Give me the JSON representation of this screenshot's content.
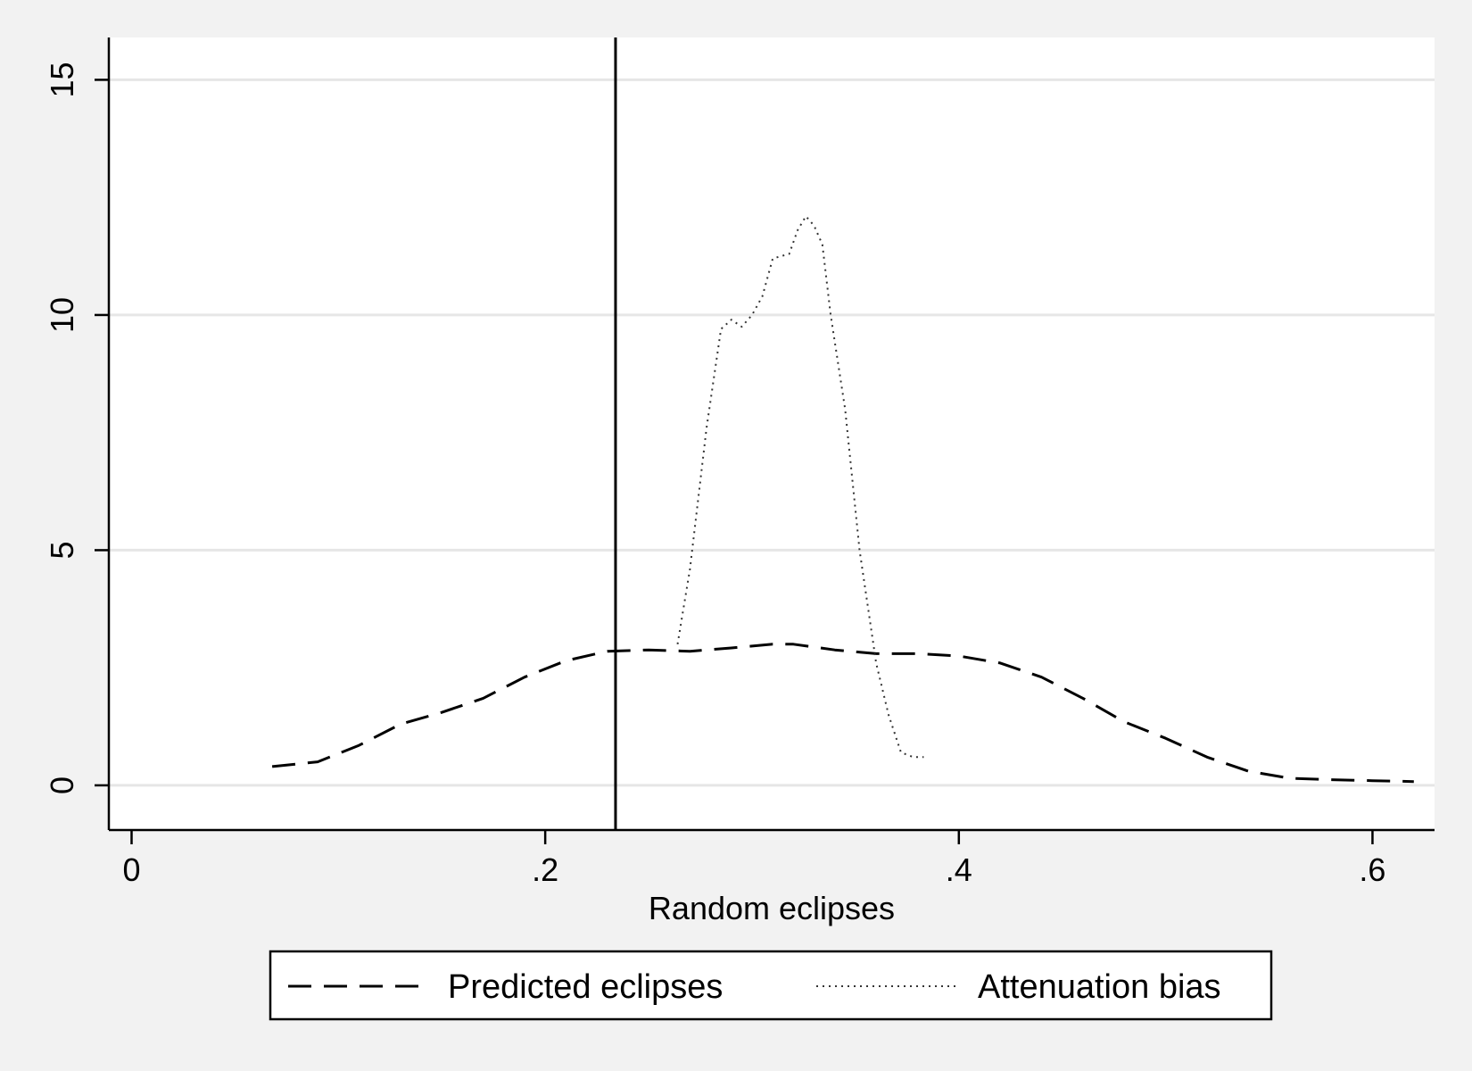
{
  "chart_data": {
    "type": "line",
    "title": "",
    "xlabel": "Random eclipses",
    "ylabel": "",
    "xlim": [
      -0.011,
      0.63
    ],
    "ylim": [
      -0.95,
      15.9
    ],
    "x_ticks": [
      {
        "value": 0,
        "label": "0"
      },
      {
        "value": 0.2,
        "label": ".2"
      },
      {
        "value": 0.4,
        "label": ".4"
      },
      {
        "value": 0.6,
        "label": ".6"
      }
    ],
    "y_ticks": [
      {
        "value": 0,
        "label": "0"
      },
      {
        "value": 5,
        "label": "5"
      },
      {
        "value": 10,
        "label": "10"
      },
      {
        "value": 15,
        "label": "15"
      }
    ],
    "grid": "horizontal",
    "legend_position": "bottom",
    "reference_line": {
      "x": 0.234,
      "color": "#000000"
    },
    "series": [
      {
        "name": "Predicted eclipses",
        "style": "dashed",
        "color": "#000000",
        "x": [
          0.068,
          0.09,
          0.11,
          0.13,
          0.15,
          0.17,
          0.19,
          0.21,
          0.23,
          0.25,
          0.27,
          0.29,
          0.31,
          0.32,
          0.34,
          0.36,
          0.38,
          0.4,
          0.42,
          0.44,
          0.46,
          0.48,
          0.5,
          0.52,
          0.54,
          0.56,
          0.58,
          0.6,
          0.62
        ],
        "values": [
          0.4,
          0.5,
          0.85,
          1.3,
          1.55,
          1.85,
          2.3,
          2.65,
          2.85,
          2.88,
          2.85,
          2.92,
          3.0,
          3.0,
          2.88,
          2.8,
          2.8,
          2.75,
          2.6,
          2.3,
          1.85,
          1.35,
          1.0,
          0.6,
          0.3,
          0.15,
          0.12,
          0.1,
          0.08
        ]
      },
      {
        "name": "Attenuation bias",
        "style": "dotted",
        "color": "#333333",
        "x": [
          0.264,
          0.27,
          0.278,
          0.285,
          0.29,
          0.295,
          0.3,
          0.305,
          0.31,
          0.318,
          0.322,
          0.326,
          0.33,
          0.334,
          0.338,
          0.345,
          0.352,
          0.36,
          0.366,
          0.372,
          0.378,
          0.383
        ],
        "values": [
          3.0,
          4.6,
          7.6,
          9.7,
          9.9,
          9.75,
          10.0,
          10.4,
          11.2,
          11.3,
          11.8,
          12.1,
          11.9,
          11.5,
          10.0,
          8.0,
          5.0,
          2.6,
          1.5,
          0.7,
          0.6,
          0.6
        ]
      }
    ]
  }
}
